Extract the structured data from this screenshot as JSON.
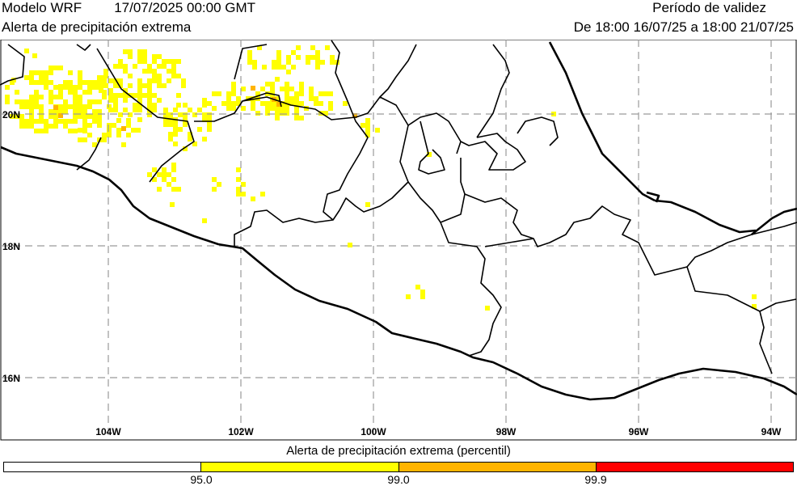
{
  "header": {
    "model": "Modelo WRF",
    "run_time": "17/07/2025 00:00 GMT",
    "product": "Alerta de precipitación extrema",
    "validity_title": "Período de validez",
    "validity_range": "De 18:00 16/07/25 a 18:00 21/07/25"
  },
  "map": {
    "lat_labels": [
      "20N",
      "18N",
      "16N"
    ],
    "lon_labels": [
      "104W",
      "102W",
      "100W",
      "98W",
      "96W",
      "94W"
    ],
    "colors": {
      "coast": "#000000",
      "grid": "#9a9a9a",
      "p95": "#ffff00",
      "p99": "#ffb400",
      "p999": "#ff0000"
    }
  },
  "legend": {
    "title": "Alerta de precipitación extrema (percentil)",
    "thresholds": [
      "95.0",
      "99.0",
      "99.9"
    ],
    "colors": [
      "#ffffff",
      "#ffff00",
      "#ffb400",
      "#ff0000"
    ]
  }
}
